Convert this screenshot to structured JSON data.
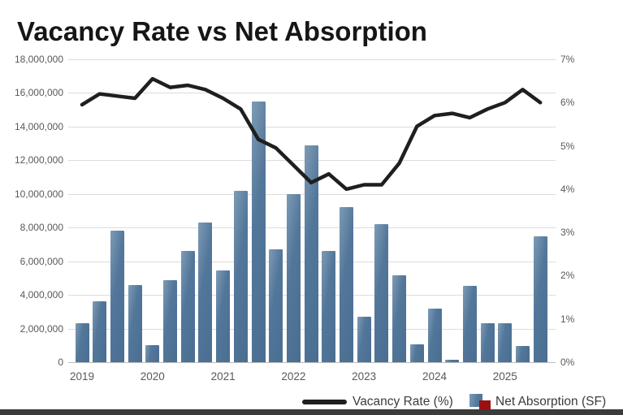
{
  "page": {
    "title": "Vacancy Rate vs Net Absorption"
  },
  "colors": {
    "bar_main": "#53779a",
    "bar_light": "#7e9bb5",
    "bar_dark": "#4a6e92",
    "line": "#1f1f1f",
    "legend_red": "#9b1111",
    "grid": "#dcdcdc",
    "axis_text": "#59595b",
    "title_text": "#161616"
  },
  "chart_data": {
    "type": "combo",
    "subtype": "bar+line dual axis",
    "title": "Vacancy Rate vs Net Absorption",
    "frequency": "quarterly",
    "x_start": "2019 Q1",
    "x_end": "2025 Q3",
    "year_labels": [
      "2019",
      "2020",
      "2021",
      "2022",
      "2023",
      "2024",
      "2025"
    ],
    "points_per_year": 4,
    "grid": true,
    "legend_position": "bottom-right",
    "series": [
      {
        "name": "Net Absorption (SF)",
        "type": "bar",
        "axis": "left",
        "values": [
          2300000,
          3600000,
          7800000,
          4600000,
          1000000,
          4850000,
          6600000,
          8300000,
          5450000,
          10200000,
          15500000,
          6700000,
          10000000,
          12900000,
          6600000,
          9200000,
          2700000,
          8200000,
          5150000,
          1050000,
          3200000,
          150000,
          4550000,
          2300000,
          2300000,
          950000,
          7500000
        ]
      },
      {
        "name": "Vacancy Rate (%)",
        "type": "line",
        "axis": "right",
        "values": [
          5.95,
          6.2,
          6.15,
          6.1,
          6.55,
          6.35,
          6.4,
          6.3,
          6.1,
          5.85,
          5.15,
          4.95,
          4.55,
          4.15,
          4.35,
          4.0,
          4.1,
          4.1,
          4.6,
          5.45,
          5.7,
          5.75,
          5.65,
          5.85,
          6.0,
          6.3,
          6.0
        ]
      }
    ],
    "left_axis": {
      "min": 0,
      "max": 18000000,
      "tick_labels": [
        "18,000,000",
        "16,000,000",
        "14,000,000",
        "12,000,000",
        "10,000,000",
        "8,000,000",
        "6,000,000",
        "4,000,000",
        "2,000,000",
        "0"
      ]
    },
    "right_axis": {
      "min": 0,
      "max": 7,
      "tick_labels": [
        "7%",
        "6%",
        "5%",
        "4%",
        "3%",
        "2%",
        "1%",
        "0%"
      ]
    }
  }
}
